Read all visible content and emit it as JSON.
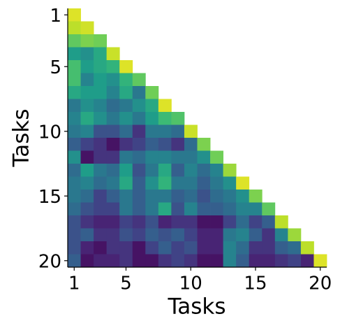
{
  "chart_data": {
    "type": "heatmap",
    "colormap": "viridis",
    "x_label": "Tasks",
    "y_label": "Tasks",
    "xlim": [
      0.5,
      20.5
    ],
    "ylim": [
      0.5,
      20.5
    ],
    "y_inverted": true,
    "xticks": [
      1,
      5,
      10,
      15,
      20
    ],
    "yticks": [
      1,
      5,
      10,
      15,
      20
    ],
    "z": [
      [
        0.95,
        null,
        null,
        null,
        null,
        null,
        null,
        null,
        null,
        null,
        null,
        null,
        null,
        null,
        null,
        null,
        null,
        null,
        null,
        null
      ],
      [
        0.9,
        0.93,
        null,
        null,
        null,
        null,
        null,
        null,
        null,
        null,
        null,
        null,
        null,
        null,
        null,
        null,
        null,
        null,
        null,
        null
      ],
      [
        0.75,
        0.8,
        0.78,
        null,
        null,
        null,
        null,
        null,
        null,
        null,
        null,
        null,
        null,
        null,
        null,
        null,
        null,
        null,
        null,
        null
      ],
      [
        0.55,
        0.5,
        0.6,
        0.92,
        null,
        null,
        null,
        null,
        null,
        null,
        null,
        null,
        null,
        null,
        null,
        null,
        null,
        null,
        null,
        null
      ],
      [
        0.7,
        0.55,
        0.6,
        0.65,
        0.95,
        null,
        null,
        null,
        null,
        null,
        null,
        null,
        null,
        null,
        null,
        null,
        null,
        null,
        null,
        null
      ],
      [
        0.7,
        0.45,
        0.55,
        0.5,
        0.65,
        0.75,
        null,
        null,
        null,
        null,
        null,
        null,
        null,
        null,
        null,
        null,
        null,
        null,
        null,
        null
      ],
      [
        0.6,
        0.55,
        0.55,
        0.45,
        0.6,
        0.4,
        0.78,
        null,
        null,
        null,
        null,
        null,
        null,
        null,
        null,
        null,
        null,
        null,
        null,
        null
      ],
      [
        0.4,
        0.5,
        0.45,
        0.35,
        0.4,
        0.5,
        0.6,
        0.95,
        null,
        null,
        null,
        null,
        null,
        null,
        null,
        null,
        null,
        null,
        null,
        null
      ],
      [
        0.45,
        0.6,
        0.5,
        0.4,
        0.5,
        0.4,
        0.55,
        0.68,
        0.72,
        null,
        null,
        null,
        null,
        null,
        null,
        null,
        null,
        null,
        null,
        null
      ],
      [
        0.4,
        0.45,
        0.25,
        0.25,
        0.35,
        0.15,
        0.4,
        0.4,
        0.35,
        0.92,
        null,
        null,
        null,
        null,
        null,
        null,
        null,
        null,
        null,
        null
      ],
      [
        0.3,
        0.2,
        0.15,
        0.05,
        0.15,
        0.2,
        0.3,
        0.25,
        0.15,
        0.35,
        0.8,
        null,
        null,
        null,
        null,
        null,
        null,
        null,
        null,
        null
      ],
      [
        0.5,
        0.05,
        0.15,
        0.15,
        0.4,
        0.35,
        0.45,
        0.45,
        0.4,
        0.4,
        0.5,
        0.78,
        null,
        null,
        null,
        null,
        null,
        null,
        null,
        null
      ],
      [
        0.35,
        0.55,
        0.4,
        0.35,
        0.55,
        0.25,
        0.4,
        0.6,
        0.3,
        0.45,
        0.35,
        0.45,
        0.85,
        null,
        null,
        null,
        null,
        null,
        null,
        null
      ],
      [
        0.4,
        0.45,
        0.35,
        0.4,
        0.6,
        0.3,
        0.5,
        0.65,
        0.4,
        0.4,
        0.3,
        0.4,
        0.5,
        0.95,
        null,
        null,
        null,
        null,
        null,
        null
      ],
      [
        0.4,
        0.35,
        0.2,
        0.3,
        0.4,
        0.3,
        0.4,
        0.4,
        0.3,
        0.35,
        0.25,
        0.35,
        0.4,
        0.5,
        0.8,
        null,
        null,
        null,
        null,
        null
      ],
      [
        0.35,
        0.25,
        0.2,
        0.2,
        0.4,
        0.3,
        0.4,
        0.6,
        0.25,
        0.45,
        0.3,
        0.3,
        0.35,
        0.45,
        0.45,
        0.75,
        null,
        null,
        null,
        null
      ],
      [
        0.25,
        0.15,
        0.1,
        0.1,
        0.2,
        0.15,
        0.25,
        0.1,
        0.15,
        0.15,
        0.05,
        0.05,
        0.2,
        0.35,
        0.2,
        0.3,
        0.9,
        null,
        null,
        null
      ],
      [
        0.25,
        0.3,
        0.15,
        0.15,
        0.25,
        0.2,
        0.3,
        0.25,
        0.3,
        0.2,
        0.1,
        0.1,
        0.4,
        0.45,
        0.3,
        0.15,
        0.45,
        0.85,
        null,
        null
      ],
      [
        0.25,
        0.1,
        0.05,
        0.15,
        0.15,
        0.05,
        0.2,
        0.3,
        0.2,
        0.25,
        0.1,
        0.1,
        0.45,
        0.35,
        0.15,
        0.15,
        0.3,
        0.35,
        0.9,
        null
      ],
      [
        0.3,
        0.05,
        0.1,
        0.1,
        0.15,
        0.05,
        0.05,
        0.15,
        0.2,
        0.15,
        0.05,
        0.05,
        0.45,
        0.3,
        0.1,
        0.1,
        0.15,
        0.2,
        0.1,
        0.95
      ]
    ]
  }
}
